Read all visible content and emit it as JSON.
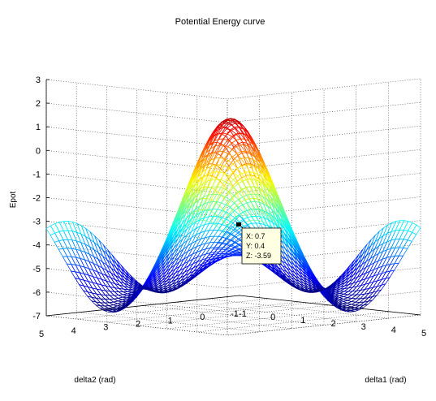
{
  "chart_data": {
    "type": "surface",
    "title": "Potential Energy curve",
    "xlabel": "delta1 (rad)",
    "ylabel": "delta2 (rad)",
    "zlabel": "Epot",
    "xlim": [
      -1,
      5
    ],
    "ylim": [
      -1,
      5
    ],
    "zlim": [
      -7,
      3
    ],
    "x_ticks": [
      "-1",
      "0",
      "1",
      "2",
      "3",
      "4",
      "5"
    ],
    "y_ticks": [
      "-1",
      "0",
      "1",
      "2",
      "3",
      "4",
      "5"
    ],
    "z_ticks": [
      "-7",
      "-6",
      "-5",
      "-4",
      "-3",
      "-2",
      "-1",
      "0",
      "1",
      "2",
      "3"
    ],
    "colormap": "jet",
    "grid": true,
    "datatip": {
      "x_label": "X: 0.7",
      "y_label": "Y: 0.4",
      "z_label": "Z: -3.59",
      "x": 0.7,
      "y": 0.4,
      "z": -3.59
    }
  }
}
